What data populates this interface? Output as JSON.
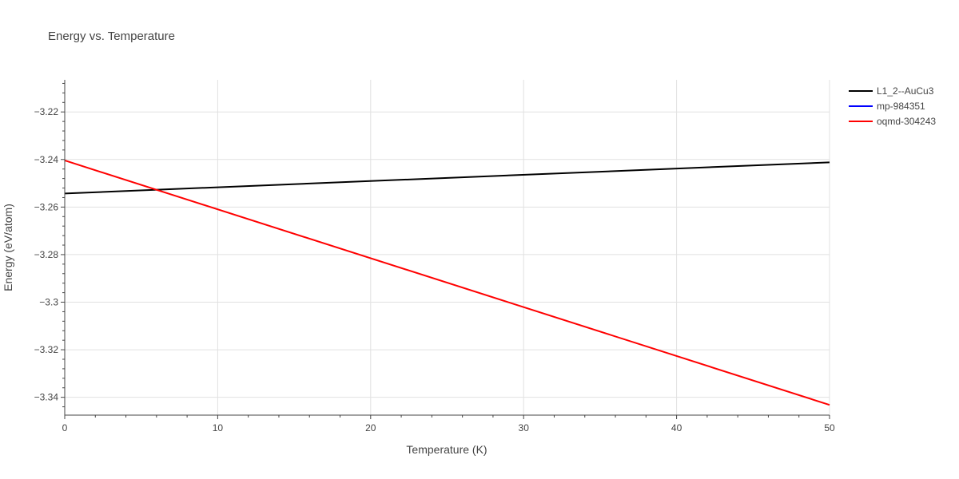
{
  "chart_data": {
    "type": "line",
    "title": "Energy vs. Temperature",
    "xlabel": "Temperature (K)",
    "ylabel": "Energy (eV/atom)",
    "xlim": [
      0,
      50
    ],
    "ylim": [
      -3.3475,
      -3.2065
    ],
    "xticks": [
      0,
      10,
      20,
      30,
      40,
      50
    ],
    "xtick_labels": [
      "0",
      "10",
      "20",
      "30",
      "40",
      "50"
    ],
    "yticks": [
      -3.22,
      -3.24,
      -3.26,
      -3.28,
      -3.3,
      -3.32,
      -3.34
    ],
    "ytick_labels": [
      "−3.22",
      "−3.24",
      "−3.26",
      "−3.28",
      "−3.3",
      "−3.32",
      "−3.34"
    ],
    "grid": true,
    "legend_position": "top-right",
    "series": [
      {
        "name": "L1_2--AuCu3",
        "color": "#000000",
        "x": [
          0,
          50
        ],
        "y": [
          -3.2543,
          -3.2412
        ]
      },
      {
        "name": "mp-984351",
        "color": "#0000ff",
        "x": [],
        "y": []
      },
      {
        "name": "oqmd-304243",
        "color": "#ff0000",
        "x": [
          0,
          50
        ],
        "y": [
          -3.2404,
          -3.3432
        ]
      }
    ]
  }
}
